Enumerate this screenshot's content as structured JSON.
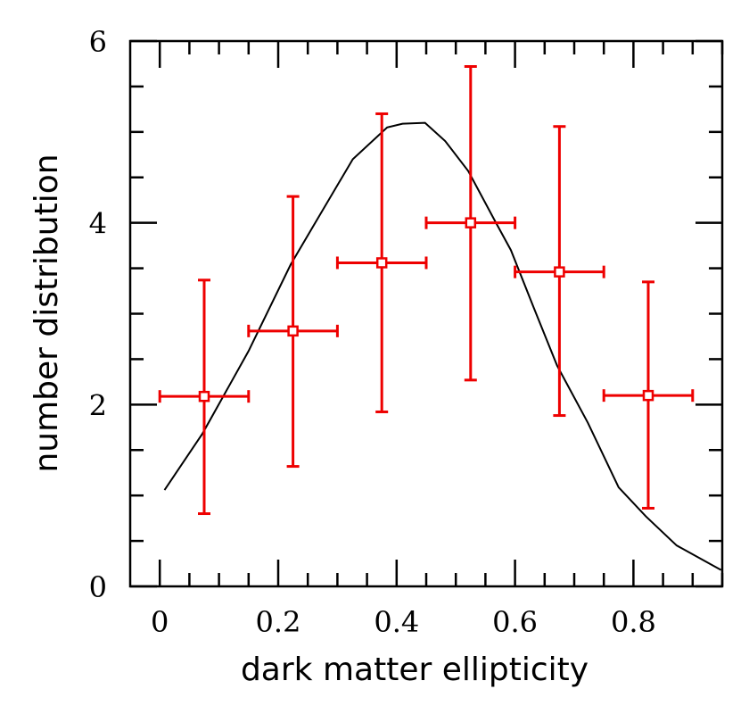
{
  "chart_data": {
    "type": "scatter",
    "title": "",
    "xlabel": "dark matter ellipticity",
    "ylabel": "number distribution",
    "xlim": [
      -0.05,
      0.95
    ],
    "ylim": [
      0,
      6
    ],
    "xticks": [
      0,
      0.2,
      0.4,
      0.6,
      0.8
    ],
    "xtick_labels": [
      "0",
      "0.2",
      "0.4",
      "0.6",
      "0.8"
    ],
    "yticks": [
      0,
      2,
      4,
      6
    ],
    "ytick_labels": [
      "0",
      "2",
      "4",
      "6"
    ],
    "x_minor_step": 0.05,
    "y_minor_step": 0.5,
    "grid": false,
    "series": [
      {
        "name": "data",
        "kind": "errorbar",
        "color": "#ee0000",
        "points": [
          {
            "x": 0.075,
            "y": 2.09,
            "xlo": 0.0,
            "xhi": 0.15,
            "ylo": 0.8,
            "yhi": 3.37
          },
          {
            "x": 0.225,
            "y": 2.81,
            "xlo": 0.15,
            "xhi": 0.3,
            "ylo": 1.32,
            "yhi": 4.29
          },
          {
            "x": 0.375,
            "y": 3.56,
            "xlo": 0.3,
            "xhi": 0.45,
            "ylo": 1.92,
            "yhi": 5.2
          },
          {
            "x": 0.525,
            "y": 4.0,
            "xlo": 0.45,
            "xhi": 0.6,
            "ylo": 2.27,
            "yhi": 5.72
          },
          {
            "x": 0.675,
            "y": 3.46,
            "xlo": 0.6,
            "xhi": 0.75,
            "ylo": 1.88,
            "yhi": 5.06
          },
          {
            "x": 0.825,
            "y": 2.1,
            "xlo": 0.75,
            "xhi": 0.9,
            "ylo": 0.86,
            "yhi": 3.35
          }
        ]
      },
      {
        "name": "model",
        "kind": "line",
        "color": "#000000",
        "x": [
          0.008,
          0.072,
          0.15,
          0.221,
          0.267,
          0.326,
          0.384,
          0.41,
          0.448,
          0.482,
          0.521,
          0.567,
          0.593,
          0.632,
          0.671,
          0.723,
          0.775,
          0.821,
          0.873,
          0.948
        ],
        "y": [
          1.06,
          1.68,
          2.59,
          3.54,
          4.05,
          4.7,
          5.05,
          5.09,
          5.1,
          4.9,
          4.57,
          4.01,
          3.7,
          3.06,
          2.43,
          1.8,
          1.09,
          0.77,
          0.45,
          0.18
        ]
      }
    ]
  }
}
